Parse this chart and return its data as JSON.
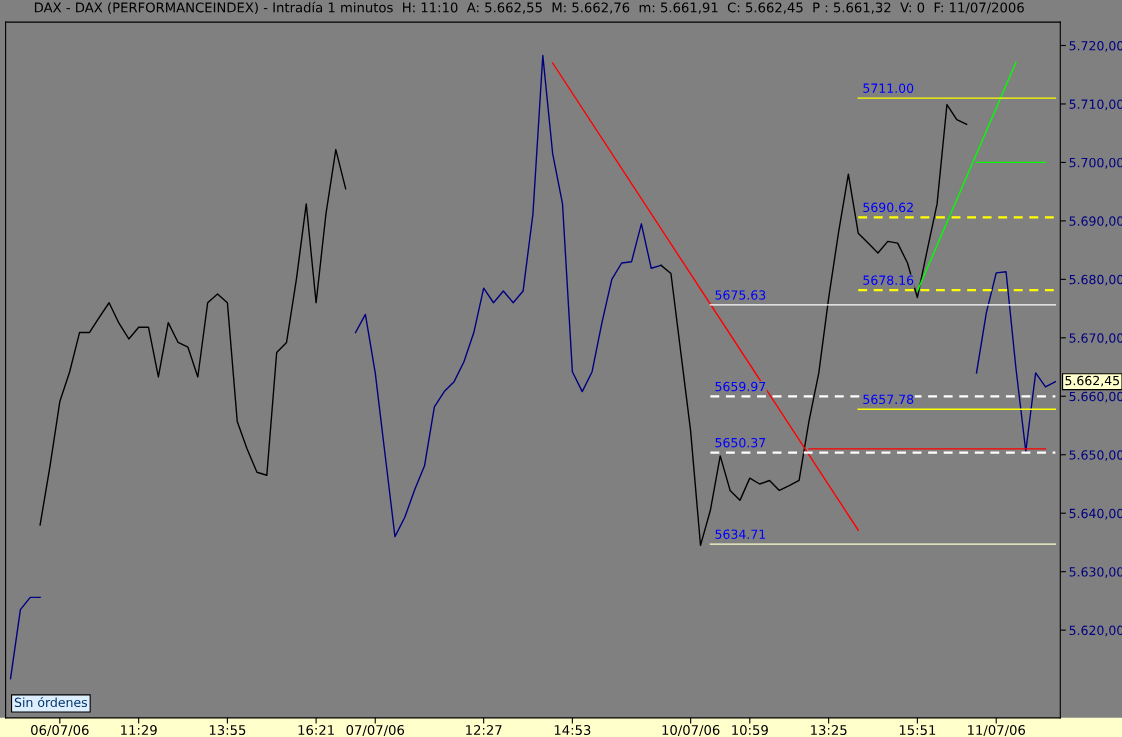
{
  "chart_data": {
    "type": "line",
    "title": "DAX - DAX (PERFORMANCEINDEX) - Intradía 1 minutos  H: 11:10  A: 5.662,55  M: 5.662,76  m: 5.661,91  C: 5.662,45  P : 5.661,32  V: 0  F: 11/07/2006",
    "categories": [
      null,
      null,
      null,
      null,
      null,
      "06/07/06",
      null,
      null,
      null,
      null,
      null,
      null,
      null,
      "11:29",
      null,
      null,
      null,
      null,
      null,
      null,
      null,
      null,
      "13:55",
      null,
      null,
      null,
      null,
      null,
      null,
      null,
      null,
      "16:21",
      null,
      null,
      null,
      null,
      null,
      "07/07/06",
      null,
      null,
      null,
      null,
      null,
      null,
      null,
      null,
      null,
      null,
      "12:27",
      null,
      null,
      null,
      null,
      null,
      null,
      null,
      null,
      "14:53",
      null,
      null,
      null,
      null,
      null,
      null,
      null,
      null,
      null,
      null,
      null,
      "10/07/06",
      null,
      null,
      null,
      null,
      null,
      "10:59",
      null,
      null,
      null,
      null,
      null,
      null,
      null,
      "13:25",
      null,
      null,
      null,
      null,
      null,
      null,
      null,
      null,
      "15:51",
      null,
      null,
      null,
      null,
      null,
      null,
      null,
      "11/07/06",
      null,
      null,
      null,
      null,
      null,
      null
    ],
    "ylim": [
      5605,
      5724
    ],
    "yticks": [
      {
        "value": 5620,
        "label": "5.620,00"
      },
      {
        "value": 5630,
        "label": "5.630,00"
      },
      {
        "value": 5640,
        "label": "5.640,00"
      },
      {
        "value": 5650,
        "label": "5.650,00"
      },
      {
        "value": 5660,
        "label": "5.660,00"
      },
      {
        "value": 5670,
        "label": "5.670,00"
      },
      {
        "value": 5680,
        "label": "5.680,00"
      },
      {
        "value": 5690,
        "label": "5.690,00"
      },
      {
        "value": 5700,
        "label": "5.700,00"
      },
      {
        "value": 5710,
        "label": "5.710,00"
      },
      {
        "value": 5720,
        "label": "5.720,00"
      }
    ],
    "series": [
      {
        "color": "#000080",
        "values": [
          5611.7,
          5623.5,
          5625.6,
          5625.6,
          null,
          null,
          null,
          null,
          null,
          null,
          null,
          null,
          null,
          null,
          null,
          null,
          null,
          null,
          null,
          null,
          null,
          null,
          null,
          null,
          null,
          null,
          null,
          null,
          null,
          null,
          null,
          null,
          null,
          null,
          null,
          null,
          null,
          null,
          null,
          null,
          null,
          null,
          null,
          null,
          null,
          null,
          null,
          null,
          null,
          null,
          null,
          null,
          null,
          null,
          null,
          null,
          null,
          null,
          null,
          null,
          null,
          null,
          null,
          null,
          null,
          null,
          null,
          null,
          null,
          null,
          null,
          null,
          null,
          null,
          null,
          null,
          null,
          null,
          null,
          null,
          null,
          null,
          null,
          null,
          null,
          null,
          null,
          null,
          null,
          null,
          null,
          null,
          null,
          null,
          null,
          null,
          null,
          null,
          null,
          null,
          null,
          null,
          null,
          null,
          null,
          null,
          null
        ]
      },
      {
        "color": "#000000",
        "values": [
          null,
          null,
          null,
          5638,
          5648,
          5659.1,
          5664.2,
          5670.9,
          5670.9,
          5673.5,
          5676,
          5672.5,
          5669.8,
          5671.8,
          5671.8,
          5663.3,
          5672.6,
          5669.2,
          5668.4,
          5663.3,
          5676,
          5677.5,
          5676,
          5655.7,
          5651,
          5647,
          5646.5,
          5667.5,
          5669.2,
          5680,
          5692.9,
          5676,
          5691.2,
          5702.2,
          5695.5,
          null,
          null,
          null,
          null,
          null,
          null,
          null,
          null,
          null,
          null,
          null,
          null,
          null,
          null,
          null,
          null,
          null,
          null,
          null,
          null,
          null,
          null,
          null,
          null,
          null,
          null,
          null,
          null,
          null,
          null,
          null,
          null,
          null,
          null,
          null,
          null,
          null,
          null,
          null,
          null,
          null,
          null,
          null,
          null,
          null,
          null,
          null,
          null,
          null,
          null,
          null,
          null,
          null,
          null,
          null,
          null,
          null,
          null,
          null,
          null,
          null,
          null,
          null,
          null,
          null,
          null,
          null,
          null,
          null,
          null,
          null,
          null
        ]
      },
      {
        "color": "#000080",
        "values": [
          null,
          null,
          null,
          null,
          null,
          null,
          null,
          null,
          null,
          null,
          null,
          null,
          null,
          null,
          null,
          null,
          null,
          null,
          null,
          null,
          null,
          null,
          null,
          null,
          null,
          null,
          null,
          null,
          null,
          null,
          null,
          null,
          null,
          null,
          null,
          5670.9,
          5674,
          5664,
          5650,
          5636,
          5639.3,
          5644,
          5648.1,
          5658.2,
          5660.8,
          5662.5,
          5665.9,
          5670.9,
          5678.5,
          5676,
          5678,
          5676,
          5678,
          5691.2,
          5718.3,
          5701.5,
          5692.9,
          5664.2,
          5660.8,
          5664.2,
          5672.6,
          5680,
          5682.8,
          5683,
          5689.5,
          5681.9,
          5682.4,
          null,
          null,
          null,
          null,
          null,
          null,
          null,
          null,
          null,
          null,
          null,
          null,
          null,
          null,
          null,
          null,
          null,
          null,
          null,
          null,
          null,
          null,
          null,
          null,
          null,
          null,
          null,
          null,
          null,
          null,
          null,
          null,
          null,
          null,
          null,
          null,
          null,
          null,
          null,
          null
        ]
      },
      {
        "color": "#000000",
        "values": [
          null,
          null,
          null,
          null,
          null,
          null,
          null,
          null,
          null,
          null,
          null,
          null,
          null,
          null,
          null,
          null,
          null,
          null,
          null,
          null,
          null,
          null,
          null,
          null,
          null,
          null,
          null,
          null,
          null,
          null,
          null,
          null,
          null,
          null,
          null,
          null,
          null,
          null,
          null,
          null,
          null,
          null,
          null,
          null,
          null,
          null,
          null,
          null,
          null,
          null,
          null,
          null,
          null,
          null,
          null,
          null,
          null,
          null,
          null,
          null,
          null,
          null,
          null,
          null,
          null,
          null,
          5682.4,
          5681,
          5667.5,
          5654,
          5634.5,
          5640.5,
          5649.8,
          5643.9,
          5642.2,
          5646,
          5645,
          5645.6,
          5643.9,
          5644.7,
          5645.6,
          5655.7,
          5664,
          5676.8,
          5688,
          5698,
          5687.9,
          5686.2,
          5684.5,
          5686.5,
          5686.2,
          5682.8,
          5676.9,
          5685,
          5692.9,
          5709.9,
          5707.3,
          5706.5,
          null,
          null,
          null,
          null,
          null,
          null,
          null,
          null,
          null
        ]
      },
      {
        "color": "#000080",
        "values": [
          null,
          null,
          null,
          null,
          null,
          null,
          null,
          null,
          null,
          null,
          null,
          null,
          null,
          null,
          null,
          null,
          null,
          null,
          null,
          null,
          null,
          null,
          null,
          null,
          null,
          null,
          null,
          null,
          null,
          null,
          null,
          null,
          null,
          null,
          null,
          null,
          null,
          null,
          null,
          null,
          null,
          null,
          null,
          null,
          null,
          null,
          null,
          null,
          null,
          null,
          null,
          null,
          null,
          null,
          null,
          null,
          null,
          null,
          null,
          null,
          null,
          null,
          null,
          null,
          null,
          null,
          null,
          null,
          null,
          null,
          null,
          null,
          null,
          null,
          null,
          null,
          null,
          null,
          null,
          null,
          null,
          null,
          null,
          null,
          null,
          null,
          null,
          null,
          null,
          null,
          null,
          null,
          null,
          null,
          null,
          null,
          null,
          null,
          5664,
          5674.3,
          5681.1,
          5681.3,
          5664.8,
          5650.6,
          5664,
          5661.6,
          5662.5
        ]
      },
      {
        "color": "#ff0000",
        "values": [
          null,
          null,
          null,
          null,
          null,
          null,
          null,
          null,
          null,
          null,
          null,
          null,
          null,
          null,
          null,
          null,
          null,
          null,
          null,
          null,
          null,
          null,
          null,
          null,
          null,
          null,
          null,
          null,
          null,
          null,
          null,
          null,
          null,
          null,
          null,
          null,
          null,
          null,
          null,
          null,
          null,
          null,
          null,
          null,
          null,
          null,
          null,
          null,
          null,
          null,
          null,
          null,
          null,
          null,
          null,
          5717,
          null,
          null,
          null,
          null,
          null,
          null,
          null,
          null,
          null,
          null,
          null,
          null,
          null,
          null,
          null,
          null,
          null,
          null,
          null,
          null,
          null,
          null,
          null,
          null,
          null,
          null,
          null,
          null,
          null,
          null,
          5637.1,
          null,
          null,
          null,
          null,
          null,
          null,
          null,
          null,
          null,
          null,
          null,
          null,
          null,
          null,
          null,
          null,
          null,
          null,
          null,
          null
        ]
      },
      {
        "color": "#ff0000",
        "values": [
          null,
          null,
          null,
          null,
          null,
          null,
          null,
          null,
          null,
          null,
          null,
          null,
          null,
          null,
          null,
          null,
          null,
          null,
          null,
          null,
          null,
          null,
          null,
          null,
          null,
          null,
          null,
          null,
          null,
          null,
          null,
          null,
          null,
          null,
          null,
          null,
          null,
          null,
          null,
          null,
          null,
          null,
          null,
          null,
          null,
          null,
          null,
          null,
          null,
          null,
          null,
          null,
          null,
          null,
          null,
          null,
          null,
          null,
          null,
          null,
          null,
          null,
          null,
          null,
          null,
          null,
          null,
          null,
          null,
          null,
          null,
          null,
          null,
          null,
          null,
          null,
          null,
          null,
          null,
          null,
          null,
          5651,
          null,
          null,
          null,
          null,
          null,
          null,
          null,
          null,
          null,
          null,
          null,
          null,
          null,
          null,
          null,
          null,
          null,
          null,
          null,
          null,
          null,
          null,
          null,
          5651,
          null
        ]
      },
      {
        "color": "#00ff00",
        "values": [
          null,
          null,
          null,
          null,
          null,
          null,
          null,
          null,
          null,
          null,
          null,
          null,
          null,
          null,
          null,
          null,
          null,
          null,
          null,
          null,
          null,
          null,
          null,
          null,
          null,
          null,
          null,
          null,
          null,
          null,
          null,
          null,
          null,
          null,
          null,
          null,
          null,
          null,
          null,
          null,
          null,
          null,
          null,
          null,
          null,
          null,
          null,
          null,
          null,
          null,
          null,
          null,
          null,
          null,
          null,
          null,
          null,
          null,
          null,
          null,
          null,
          null,
          null,
          null,
          null,
          null,
          null,
          null,
          null,
          null,
          null,
          null,
          null,
          null,
          null,
          null,
          null,
          null,
          null,
          null,
          null,
          null,
          null,
          null,
          null,
          null,
          null,
          null,
          null,
          null,
          null,
          null,
          5678,
          null,
          null,
          null,
          null,
          null,
          null,
          null,
          null,
          null,
          5717.1,
          null,
          null,
          null,
          null
        ]
      },
      {
        "color": "#00ff00",
        "values": [
          null,
          null,
          null,
          null,
          null,
          null,
          null,
          null,
          null,
          null,
          null,
          null,
          null,
          null,
          null,
          null,
          null,
          null,
          null,
          null,
          null,
          null,
          null,
          null,
          null,
          null,
          null,
          null,
          null,
          null,
          null,
          null,
          null,
          null,
          null,
          null,
          null,
          null,
          null,
          null,
          null,
          null,
          null,
          null,
          null,
          null,
          null,
          null,
          null,
          null,
          null,
          null,
          null,
          null,
          null,
          null,
          null,
          null,
          null,
          null,
          null,
          null,
          null,
          null,
          null,
          null,
          null,
          null,
          null,
          null,
          null,
          null,
          null,
          null,
          null,
          null,
          null,
          null,
          null,
          null,
          null,
          null,
          null,
          null,
          null,
          null,
          null,
          null,
          null,
          null,
          null,
          null,
          null,
          null,
          null,
          null,
          null,
          null,
          5700,
          null,
          null,
          null,
          null,
          null,
          null,
          5700,
          null
        ]
      },
      {
        "name": "5675.63",
        "color": "#ffffff",
        "values": [
          null,
          null,
          null,
          null,
          null,
          null,
          null,
          null,
          null,
          null,
          null,
          null,
          null,
          null,
          null,
          null,
          null,
          null,
          null,
          null,
          null,
          null,
          null,
          null,
          null,
          null,
          null,
          null,
          null,
          null,
          null,
          null,
          null,
          null,
          null,
          null,
          null,
          null,
          null,
          null,
          null,
          null,
          null,
          null,
          null,
          null,
          null,
          null,
          null,
          null,
          null,
          null,
          null,
          null,
          null,
          null,
          null,
          null,
          null,
          null,
          null,
          null,
          null,
          null,
          null,
          null,
          null,
          null,
          null,
          null,
          null,
          5675.63,
          null,
          null,
          null,
          null,
          null,
          null,
          null,
          null,
          null,
          null,
          null,
          null,
          null,
          null,
          null,
          null,
          null,
          null,
          null,
          null,
          null,
          null,
          null,
          null,
          null,
          null,
          null,
          null,
          null,
          null,
          null,
          null,
          null,
          null,
          5675.63
        ]
      },
      {
        "name": "5634.71",
        "color": "#ffffcc",
        "values": [
          null,
          null,
          null,
          null,
          null,
          null,
          null,
          null,
          null,
          null,
          null,
          null,
          null,
          null,
          null,
          null,
          null,
          null,
          null,
          null,
          null,
          null,
          null,
          null,
          null,
          null,
          null,
          null,
          null,
          null,
          null,
          null,
          null,
          null,
          null,
          null,
          null,
          null,
          null,
          null,
          null,
          null,
          null,
          null,
          null,
          null,
          null,
          null,
          null,
          null,
          null,
          null,
          null,
          null,
          null,
          null,
          null,
          null,
          null,
          null,
          null,
          null,
          null,
          null,
          null,
          null,
          null,
          null,
          null,
          null,
          null,
          5634.71,
          null,
          null,
          null,
          null,
          null,
          null,
          null,
          null,
          null,
          null,
          null,
          null,
          null,
          null,
          null,
          null,
          null,
          null,
          null,
          null,
          null,
          null,
          null,
          null,
          null,
          null,
          null,
          null,
          null,
          null,
          null,
          null,
          null,
          null,
          5634.71
        ]
      },
      {
        "name": "5659.97",
        "color": "#ffffff",
        "line_style": "dashed",
        "values": [
          null,
          null,
          null,
          null,
          null,
          null,
          null,
          null,
          null,
          null,
          null,
          null,
          null,
          null,
          null,
          null,
          null,
          null,
          null,
          null,
          null,
          null,
          null,
          null,
          null,
          null,
          null,
          null,
          null,
          null,
          null,
          null,
          null,
          null,
          null,
          null,
          null,
          null,
          null,
          null,
          null,
          null,
          null,
          null,
          null,
          null,
          null,
          null,
          null,
          null,
          null,
          null,
          null,
          null,
          null,
          null,
          null,
          null,
          null,
          null,
          null,
          null,
          null,
          null,
          null,
          null,
          null,
          null,
          null,
          null,
          null,
          5659.97,
          null,
          null,
          null,
          null,
          null,
          null,
          null,
          null,
          null,
          null,
          null,
          null,
          null,
          null,
          null,
          null,
          null,
          null,
          null,
          null,
          null,
          null,
          null,
          null,
          null,
          null,
          null,
          null,
          null,
          null,
          null,
          null,
          null,
          null,
          5659.97
        ]
      },
      {
        "name": "5650.37",
        "color": "#ffffff",
        "line_style": "dashed",
        "values": [
          null,
          null,
          null,
          null,
          null,
          null,
          null,
          null,
          null,
          null,
          null,
          null,
          null,
          null,
          null,
          null,
          null,
          null,
          null,
          null,
          null,
          null,
          null,
          null,
          null,
          null,
          null,
          null,
          null,
          null,
          null,
          null,
          null,
          null,
          null,
          null,
          null,
          null,
          null,
          null,
          null,
          null,
          null,
          null,
          null,
          null,
          null,
          null,
          null,
          null,
          null,
          null,
          null,
          null,
          null,
          null,
          null,
          null,
          null,
          null,
          null,
          null,
          null,
          null,
          null,
          null,
          null,
          null,
          null,
          null,
          null,
          5650.37,
          null,
          null,
          null,
          null,
          null,
          null,
          null,
          null,
          null,
          null,
          null,
          null,
          null,
          null,
          null,
          null,
          null,
          null,
          null,
          null,
          null,
          null,
          null,
          null,
          null,
          null,
          null,
          null,
          null,
          null,
          null,
          null,
          null,
          null,
          5650.37
        ]
      },
      {
        "name": "5711.00",
        "color": "#ffff00",
        "values": [
          null,
          null,
          null,
          null,
          null,
          null,
          null,
          null,
          null,
          null,
          null,
          null,
          null,
          null,
          null,
          null,
          null,
          null,
          null,
          null,
          null,
          null,
          null,
          null,
          null,
          null,
          null,
          null,
          null,
          null,
          null,
          null,
          null,
          null,
          null,
          null,
          null,
          null,
          null,
          null,
          null,
          null,
          null,
          null,
          null,
          null,
          null,
          null,
          null,
          null,
          null,
          null,
          null,
          null,
          null,
          null,
          null,
          null,
          null,
          null,
          null,
          null,
          null,
          null,
          null,
          null,
          null,
          null,
          null,
          null,
          null,
          null,
          null,
          null,
          null,
          null,
          null,
          null,
          null,
          null,
          null,
          null,
          null,
          null,
          null,
          null,
          5711.0,
          null,
          null,
          null,
          null,
          null,
          null,
          null,
          null,
          null,
          null,
          null,
          null,
          null,
          null,
          null,
          null,
          null,
          null,
          null,
          5711.0
        ]
      },
      {
        "name": "5657.78",
        "color": "#ffff00",
        "values": [
          null,
          null,
          null,
          null,
          null,
          null,
          null,
          null,
          null,
          null,
          null,
          null,
          null,
          null,
          null,
          null,
          null,
          null,
          null,
          null,
          null,
          null,
          null,
          null,
          null,
          null,
          null,
          null,
          null,
          null,
          null,
          null,
          null,
          null,
          null,
          null,
          null,
          null,
          null,
          null,
          null,
          null,
          null,
          null,
          null,
          null,
          null,
          null,
          null,
          null,
          null,
          null,
          null,
          null,
          null,
          null,
          null,
          null,
          null,
          null,
          null,
          null,
          null,
          null,
          null,
          null,
          null,
          null,
          null,
          null,
          null,
          null,
          null,
          null,
          null,
          null,
          null,
          null,
          null,
          null,
          null,
          null,
          null,
          null,
          null,
          null,
          5657.78,
          null,
          null,
          null,
          null,
          null,
          null,
          null,
          null,
          null,
          null,
          null,
          null,
          null,
          null,
          null,
          null,
          null,
          null,
          null,
          5657.78
        ]
      },
      {
        "name": "5690.62",
        "color": "#ffff00",
        "line_style": "dashed",
        "values": [
          null,
          null,
          null,
          null,
          null,
          null,
          null,
          null,
          null,
          null,
          null,
          null,
          null,
          null,
          null,
          null,
          null,
          null,
          null,
          null,
          null,
          null,
          null,
          null,
          null,
          null,
          null,
          null,
          null,
          null,
          null,
          null,
          null,
          null,
          null,
          null,
          null,
          null,
          null,
          null,
          null,
          null,
          null,
          null,
          null,
          null,
          null,
          null,
          null,
          null,
          null,
          null,
          null,
          null,
          null,
          null,
          null,
          null,
          null,
          null,
          null,
          null,
          null,
          null,
          null,
          null,
          null,
          null,
          null,
          null,
          null,
          null,
          null,
          null,
          null,
          null,
          null,
          null,
          null,
          null,
          null,
          null,
          null,
          null,
          null,
          null,
          5690.62,
          null,
          null,
          null,
          null,
          null,
          null,
          null,
          null,
          null,
          null,
          null,
          null,
          null,
          null,
          null,
          null,
          null,
          null,
          null,
          5690.62
        ]
      },
      {
        "name": "5678.16",
        "color": "#ffff00",
        "line_style": "dashed",
        "values": [
          null,
          null,
          null,
          null,
          null,
          null,
          null,
          null,
          null,
          null,
          null,
          null,
          null,
          null,
          null,
          null,
          null,
          null,
          null,
          null,
          null,
          null,
          null,
          null,
          null,
          null,
          null,
          null,
          null,
          null,
          null,
          null,
          null,
          null,
          null,
          null,
          null,
          null,
          null,
          null,
          null,
          null,
          null,
          null,
          null,
          null,
          null,
          null,
          null,
          null,
          null,
          null,
          null,
          null,
          null,
          null,
          null,
          null,
          null,
          null,
          null,
          null,
          null,
          null,
          null,
          null,
          null,
          null,
          null,
          null,
          null,
          null,
          null,
          null,
          null,
          null,
          null,
          null,
          null,
          null,
          null,
          null,
          null,
          null,
          null,
          null,
          5678.16,
          null,
          null,
          null,
          null,
          null,
          null,
          null,
          null,
          null,
          null,
          null,
          null,
          null,
          null,
          null,
          null,
          null,
          null,
          null,
          5678.16
        ]
      }
    ],
    "annotations": [
      "5.662,45",
      "Sin órdenes"
    ]
  }
}
